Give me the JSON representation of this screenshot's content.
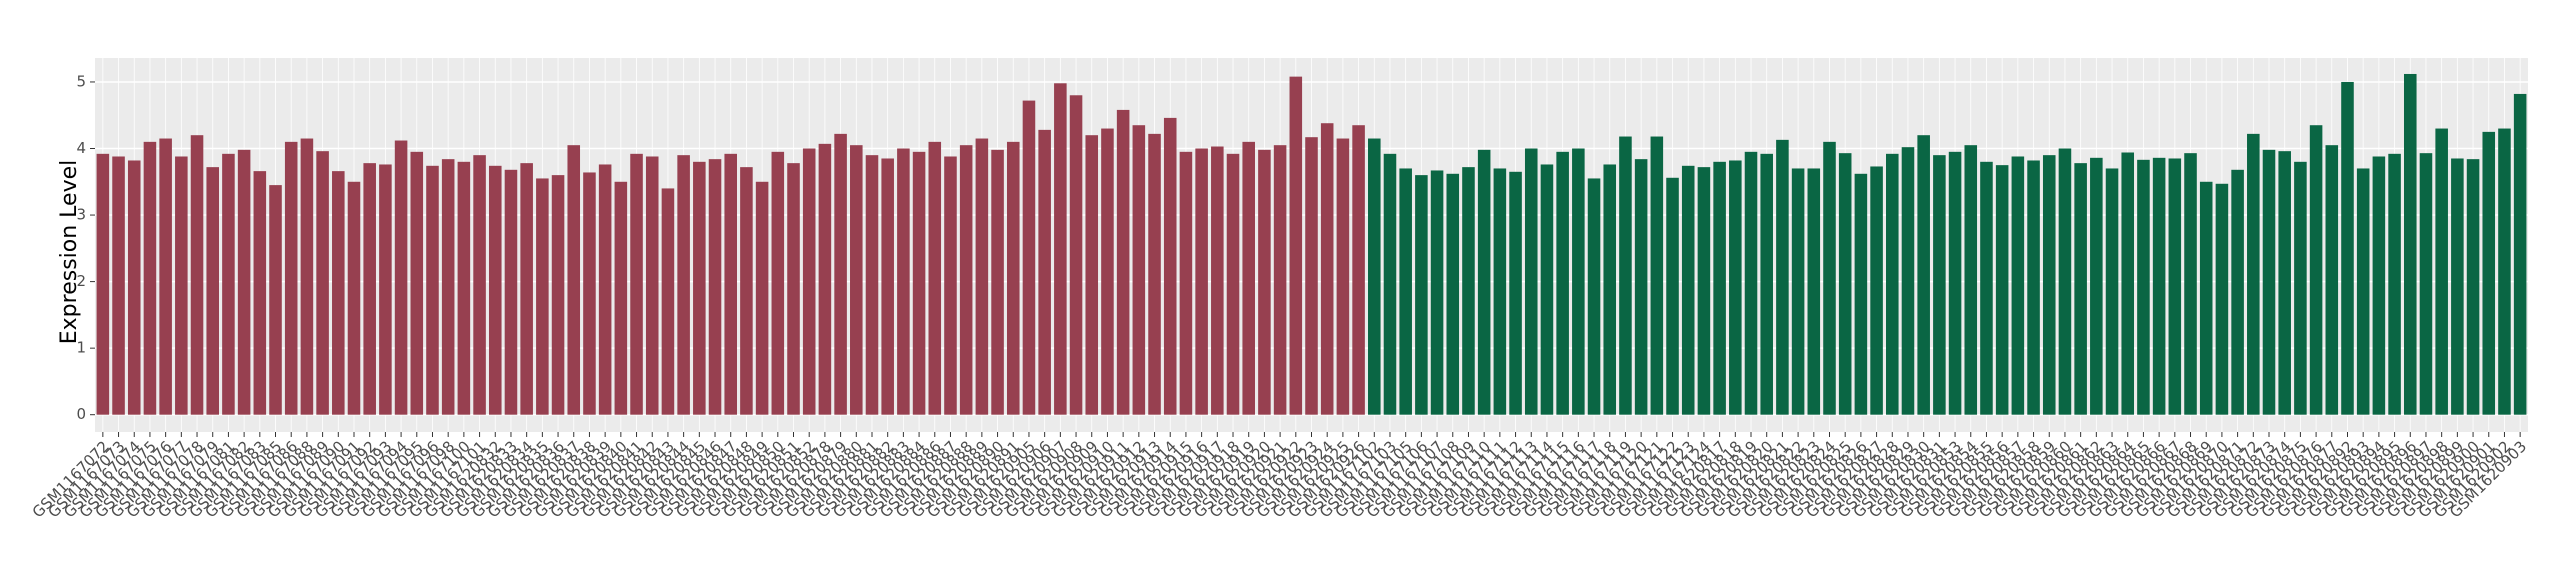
{
  "chart_data": {
    "type": "bar",
    "y_label": "Expression Level",
    "ylim": [
      -0.26,
      5.36
    ],
    "yticks": [
      0,
      1,
      2,
      3,
      4,
      5
    ],
    "grid": true,
    "background": "#ebebeb",
    "groups": [
      {
        "color": "#974050",
        "categories": [
          "GSM1167072",
          "GSM1167073",
          "GSM1167074",
          "GSM1167075",
          "GSM1167076",
          "GSM1167077",
          "GSM1167078",
          "GSM1167079",
          "GSM1167081",
          "GSM1167082",
          "GSM1167083",
          "GSM1167085",
          "GSM1167086",
          "GSM1167088",
          "GSM1167089",
          "GSM1167090",
          "GSM1167091",
          "GSM1167092",
          "GSM1167093",
          "GSM1167094",
          "GSM1167095",
          "GSM1167096",
          "GSM1167098",
          "GSM1167100",
          "GSM1167101",
          "GSM1620832",
          "GSM1620833",
          "GSM1620834",
          "GSM1620835",
          "GSM1620836",
          "GSM1620837",
          "GSM1620838",
          "GSM1620839",
          "GSM1620840",
          "GSM1620841",
          "GSM1620842",
          "GSM1620843",
          "GSM1620844",
          "GSM1620845",
          "GSM1620846",
          "GSM1620847",
          "GSM1620848",
          "GSM1620849",
          "GSM1620850",
          "GSM1620851",
          "GSM1620852",
          "GSM1620878",
          "GSM1620879",
          "GSM1620880",
          "GSM1620881",
          "GSM1620882",
          "GSM1620883",
          "GSM1620884",
          "GSM1620886",
          "GSM1620887",
          "GSM1620888",
          "GSM1620889",
          "GSM1620890",
          "GSM1620891",
          "GSM1620905",
          "GSM1620906",
          "GSM1620907",
          "GSM1620908",
          "GSM1620909",
          "GSM1620910",
          "GSM1620911",
          "GSM1620912",
          "GSM1620913",
          "GSM1620914",
          "GSM1620915",
          "GSM1620916",
          "GSM1620917",
          "GSM1620918",
          "GSM1620919",
          "GSM1620920",
          "GSM1620921",
          "GSM1620922",
          "GSM1620923",
          "GSM1620924",
          "GSM1620925",
          "GSM1620926"
        ],
        "values": [
          3.92,
          3.88,
          3.82,
          4.1,
          4.15,
          3.88,
          4.2,
          3.72,
          3.92,
          3.98,
          3.66,
          3.45,
          4.1,
          4.15,
          3.96,
          3.66,
          3.5,
          3.78,
          3.76,
          4.12,
          3.95,
          3.74,
          3.84,
          3.8,
          3.9,
          3.74,
          3.68,
          3.78,
          3.55,
          3.6,
          4.05,
          3.64,
          3.76,
          3.5,
          3.92,
          3.88,
          3.4,
          3.9,
          3.8,
          3.84,
          3.92,
          3.72,
          3.5,
          3.95,
          3.78,
          4.0,
          4.07,
          4.22,
          4.05,
          3.9,
          3.85,
          4.0,
          3.95,
          4.1,
          3.88,
          4.05,
          4.15,
          3.98,
          4.1,
          4.72,
          4.28,
          4.98,
          4.8,
          4.2,
          4.3,
          4.58,
          4.35,
          4.22,
          4.46,
          3.95,
          4.0,
          4.03,
          3.92,
          4.1,
          3.98,
          4.05,
          5.08,
          4.17,
          4.38,
          4.15,
          4.35
        ]
      },
      {
        "color": "#0a6644",
        "categories": [
          "GSM1167102",
          "GSM1167103",
          "GSM1167105",
          "GSM1167106",
          "GSM1167107",
          "GSM1167108",
          "GSM1167109",
          "GSM1167110",
          "GSM1167111",
          "GSM1167112",
          "GSM1167113",
          "GSM1167114",
          "GSM1167115",
          "GSM1167116",
          "GSM1167117",
          "GSM1167118",
          "GSM1167119",
          "GSM1167120",
          "GSM1167121",
          "GSM1167122",
          "GSM1167123",
          "GSM1167124",
          "GSM1620817",
          "GSM1620818",
          "GSM1620819",
          "GSM1620820",
          "GSM1620821",
          "GSM1620822",
          "GSM1620823",
          "GSM1620824",
          "GSM1620825",
          "GSM1620826",
          "GSM1620827",
          "GSM1620828",
          "GSM1620829",
          "GSM1620830",
          "GSM1620831",
          "GSM1620853",
          "GSM1620854",
          "GSM1620855",
          "GSM1620856",
          "GSM1620857",
          "GSM1620858",
          "GSM1620859",
          "GSM1620860",
          "GSM1620861",
          "GSM1620862",
          "GSM1620863",
          "GSM1620864",
          "GSM1620865",
          "GSM1620866",
          "GSM1620867",
          "GSM1620868",
          "GSM1620869",
          "GSM1620870",
          "GSM1620871",
          "GSM1620872",
          "GSM1620873",
          "GSM1620874",
          "GSM1620875",
          "GSM1620876",
          "GSM1620877",
          "GSM1620892",
          "GSM1620893",
          "GSM1620894",
          "GSM1620895",
          "GSM1620896",
          "GSM1620897",
          "GSM1620898",
          "GSM1620899",
          "GSM1620900",
          "GSM1620901",
          "GSM1620902",
          "GSM1620903"
        ],
        "values": [
          4.15,
          3.92,
          3.7,
          3.6,
          3.67,
          3.62,
          3.72,
          3.98,
          3.7,
          3.65,
          4.0,
          3.76,
          3.95,
          4.0,
          3.55,
          3.76,
          4.18,
          3.84,
          4.18,
          3.56,
          3.74,
          3.72,
          3.8,
          3.82,
          3.95,
          3.92,
          4.13,
          3.7,
          3.7,
          4.1,
          3.93,
          3.62,
          3.73,
          3.92,
          4.02,
          4.2,
          3.9,
          3.95,
          4.05,
          3.8,
          3.75,
          3.88,
          3.82,
          3.9,
          4.0,
          3.78,
          3.86,
          3.7,
          3.94,
          3.83,
          3.86,
          3.85,
          3.93,
          3.5,
          3.47,
          3.68,
          4.22,
          3.98,
          3.96,
          3.8,
          4.35,
          4.05,
          5.0,
          3.7,
          3.88,
          3.92,
          5.12,
          3.93,
          4.3,
          3.85,
          3.84,
          4.25,
          4.3,
          4.82
        ]
      }
    ]
  }
}
